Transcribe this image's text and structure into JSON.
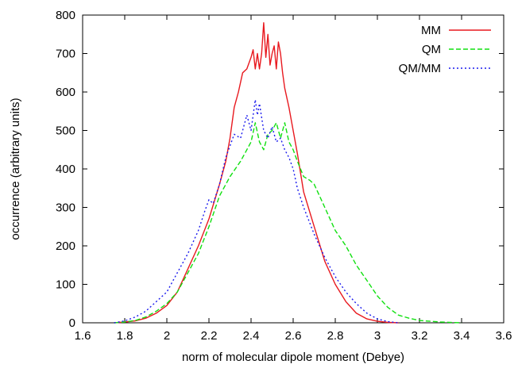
{
  "chart_data": {
    "type": "line",
    "title": "",
    "xlabel": "norm of molecular dipole moment (Debye)",
    "ylabel": "occurrence (arbitrary units)",
    "xlim": [
      1.6,
      3.6
    ],
    "ylim": [
      0,
      800
    ],
    "xticks": [
      "1.6",
      "1.8",
      "2",
      "2.2",
      "2.4",
      "2.6",
      "2.8",
      "3",
      "3.2",
      "3.4",
      "3.6"
    ],
    "yticks": [
      "0",
      "100",
      "200",
      "300",
      "400",
      "500",
      "600",
      "700",
      "800"
    ],
    "grid": false,
    "legend_position": "top-right",
    "series": [
      {
        "name": "MM",
        "color": "#e8191f",
        "style": "solid",
        "x": [
          1.75,
          1.8,
          1.85,
          1.9,
          1.95,
          2.0,
          2.05,
          2.1,
          2.15,
          2.2,
          2.25,
          2.28,
          2.3,
          2.32,
          2.34,
          2.36,
          2.38,
          2.4,
          2.41,
          2.42,
          2.43,
          2.44,
          2.45,
          2.46,
          2.47,
          2.48,
          2.49,
          2.5,
          2.51,
          2.52,
          2.53,
          2.54,
          2.55,
          2.56,
          2.58,
          2.6,
          2.62,
          2.65,
          2.7,
          2.75,
          2.8,
          2.85,
          2.9,
          2.95,
          3.0,
          3.05,
          3.1
        ],
        "y": [
          0,
          2,
          5,
          12,
          25,
          45,
          80,
          140,
          200,
          270,
          360,
          420,
          480,
          560,
          600,
          650,
          660,
          690,
          710,
          660,
          700,
          660,
          700,
          780,
          690,
          750,
          670,
          700,
          720,
          660,
          730,
          700,
          650,
          610,
          560,
          500,
          440,
          340,
          250,
          160,
          100,
          55,
          25,
          10,
          4,
          1,
          0
        ]
      },
      {
        "name": "QM",
        "color": "#11e011",
        "style": "dashed",
        "x": [
          1.75,
          1.8,
          1.85,
          1.9,
          1.95,
          2.0,
          2.05,
          2.1,
          2.15,
          2.2,
          2.25,
          2.3,
          2.35,
          2.38,
          2.4,
          2.42,
          2.44,
          2.46,
          2.48,
          2.5,
          2.52,
          2.54,
          2.56,
          2.58,
          2.6,
          2.62,
          2.65,
          2.68,
          2.7,
          2.75,
          2.8,
          2.85,
          2.9,
          2.95,
          3.0,
          3.05,
          3.1,
          3.15,
          3.2,
          3.3,
          3.4
        ],
        "y": [
          0,
          2,
          6,
          15,
          30,
          50,
          80,
          130,
          180,
          250,
          330,
          380,
          420,
          450,
          470,
          520,
          470,
          450,
          490,
          500,
          520,
          480,
          520,
          470,
          450,
          420,
          380,
          370,
          360,
          300,
          240,
          200,
          150,
          110,
          70,
          40,
          20,
          12,
          6,
          2,
          0
        ]
      },
      {
        "name": "QM/MM",
        "color": "#1a1aee",
        "style": "dotted",
        "x": [
          1.75,
          1.8,
          1.85,
          1.9,
          1.95,
          2.0,
          2.05,
          2.1,
          2.15,
          2.18,
          2.2,
          2.22,
          2.25,
          2.28,
          2.3,
          2.32,
          2.35,
          2.38,
          2.4,
          2.42,
          2.43,
          2.44,
          2.46,
          2.48,
          2.5,
          2.52,
          2.54,
          2.56,
          2.58,
          2.6,
          2.62,
          2.65,
          2.7,
          2.75,
          2.8,
          2.85,
          2.9,
          2.95,
          3.0,
          3.05,
          3.1
        ],
        "y": [
          0,
          5,
          15,
          30,
          55,
          80,
          130,
          180,
          240,
          290,
          320,
          310,
          360,
          430,
          460,
          490,
          480,
          540,
          500,
          580,
          540,
          570,
          500,
          480,
          510,
          470,
          480,
          450,
          430,
          400,
          350,
          300,
          230,
          170,
          120,
          80,
          50,
          25,
          10,
          3,
          0
        ]
      }
    ]
  }
}
